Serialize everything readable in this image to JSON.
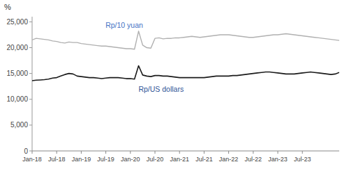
{
  "chart_data": {
    "type": "line",
    "y_label": "%",
    "categories": [
      "Jan-18",
      null,
      null,
      null,
      null,
      null,
      "Jul-18",
      null,
      null,
      null,
      null,
      null,
      "Jan-19",
      null,
      null,
      null,
      null,
      null,
      "Jul-19",
      null,
      null,
      null,
      null,
      null,
      "Jan-20",
      null,
      null,
      null,
      null,
      null,
      "Jul-20",
      null,
      null,
      null,
      null,
      null,
      "Jan-21",
      null,
      null,
      null,
      null,
      null,
      "Jul-21",
      null,
      null,
      null,
      null,
      null,
      "Jan-22",
      null,
      null,
      null,
      null,
      null,
      "Jul-22",
      null,
      null,
      null,
      null,
      null,
      "Jan-23",
      null,
      null,
      null,
      null,
      null,
      "Jul-23",
      null,
      null,
      null,
      null,
      null,
      null,
      null,
      null,
      null
    ],
    "series": [
      {
        "name": "Rp/10 yuan",
        "color": "#b0b0b0",
        "values": [
          21500,
          21800,
          21700,
          21600,
          21500,
          21300,
          21200,
          21000,
          20900,
          21100,
          21000,
          21000,
          20800,
          20700,
          20600,
          20500,
          20400,
          20300,
          20300,
          20200,
          20100,
          20000,
          19900,
          19800,
          19800,
          19700,
          23200,
          20500,
          20000,
          19900,
          21800,
          21900,
          21700,
          21800,
          21800,
          21900,
          21900,
          22000,
          22100,
          22200,
          22100,
          22000,
          22100,
          22200,
          22300,
          22400,
          22500,
          22500,
          22500,
          22400,
          22300,
          22200,
          22100,
          22000,
          22000,
          22100,
          22200,
          22300,
          22400,
          22500,
          22500,
          22600,
          22700,
          22600,
          22500,
          22400,
          22300,
          22200,
          22100,
          22000,
          21900,
          21800,
          21700,
          21600,
          21500,
          21400
        ]
      },
      {
        "name": "Rp/US dollars",
        "color": "#1a1a1a",
        "values": [
          13600,
          13700,
          13750,
          13800,
          13900,
          14100,
          14200,
          14500,
          14800,
          15000,
          14900,
          14500,
          14400,
          14300,
          14200,
          14200,
          14100,
          14000,
          14100,
          14200,
          14200,
          14200,
          14100,
          14000,
          14000,
          13900,
          16500,
          14700,
          14500,
          14400,
          14600,
          14600,
          14500,
          14500,
          14400,
          14300,
          14200,
          14200,
          14200,
          14200,
          14200,
          14200,
          14200,
          14300,
          14400,
          14500,
          14500,
          14500,
          14500,
          14600,
          14600,
          14700,
          14800,
          14900,
          15000,
          15100,
          15200,
          15300,
          15300,
          15200,
          15100,
          15000,
          14900,
          14900,
          14900,
          15000,
          15100,
          15200,
          15300,
          15200,
          15100,
          15000,
          14900,
          14800,
          14900,
          15200
        ]
      }
    ],
    "ylim": [
      0,
      26000
    ],
    "yticks": [
      0,
      {
        "value": 5000,
        "label": "5,000"
      },
      {
        "value": 10000,
        "label": "10,000"
      },
      {
        "value": 15000,
        "label": "15,000"
      },
      {
        "value": 20000,
        "label": "20,000"
      },
      {
        "value": 25000,
        "label": "25,000"
      }
    ],
    "grid": false
  }
}
